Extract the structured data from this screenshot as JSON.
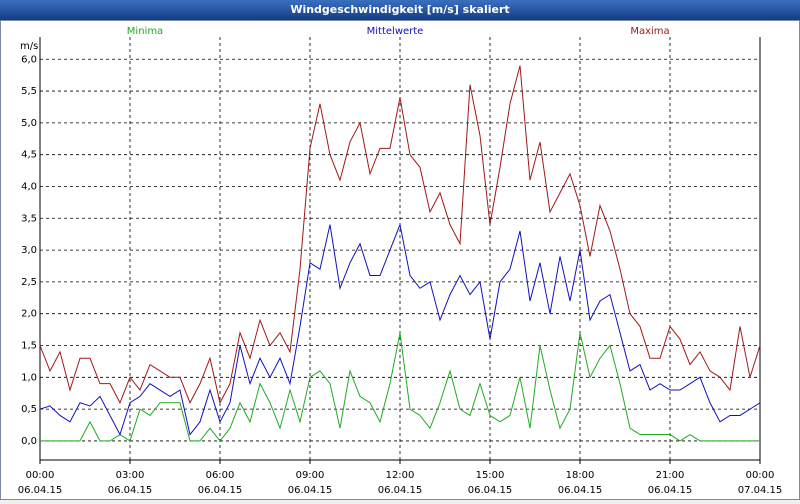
{
  "window_title": "Windgeschwindigkeit [m/s] skaliert",
  "chart_data": {
    "type": "line",
    "y_unit_label": "m/s",
    "xlim": [
      0,
      1440
    ],
    "xticks": [
      {
        "value": 0,
        "label": "00:00",
        "date": "06.04.15"
      },
      {
        "value": 180,
        "label": "03:00",
        "date": "06.04.15"
      },
      {
        "value": 360,
        "label": "06:00",
        "date": "06.04.15"
      },
      {
        "value": 540,
        "label": "09:00",
        "date": "06.04.15"
      },
      {
        "value": 720,
        "label": "12:00",
        "date": "06.04.15"
      },
      {
        "value": 900,
        "label": "15:00",
        "date": "06.04.15"
      },
      {
        "value": 1080,
        "label": "18:00",
        "date": "06.04.15"
      },
      {
        "value": 1260,
        "label": "21:00",
        "date": "06.04.15"
      },
      {
        "value": 1440,
        "label": "00:00",
        "date": "07.04.15"
      }
    ],
    "ylim": [
      -0.3,
      6.35
    ],
    "yticks": [
      {
        "value": 0,
        "label": "0,0"
      },
      {
        "value": 0.5,
        "label": "0,5"
      },
      {
        "value": 1,
        "label": "1,0"
      },
      {
        "value": 1.5,
        "label": "1,5"
      },
      {
        "value": 2,
        "label": "2,0"
      },
      {
        "value": 2.5,
        "label": "2,5"
      },
      {
        "value": 3,
        "label": "3,0"
      },
      {
        "value": 3.5,
        "label": "3,5"
      },
      {
        "value": 4,
        "label": "4,0"
      },
      {
        "value": 4.5,
        "label": "4,5"
      },
      {
        "value": 5,
        "label": "5,0"
      },
      {
        "value": 5.5,
        "label": "5,5"
      },
      {
        "value": 6,
        "label": "6,0"
      }
    ],
    "grid": true,
    "x": [
      0,
      20,
      40,
      60,
      80,
      100,
      120,
      140,
      160,
      180,
      200,
      220,
      240,
      260,
      280,
      300,
      320,
      340,
      360,
      380,
      400,
      420,
      440,
      460,
      480,
      500,
      520,
      540,
      560,
      580,
      600,
      620,
      640,
      660,
      680,
      700,
      720,
      740,
      760,
      780,
      800,
      820,
      840,
      860,
      880,
      900,
      920,
      940,
      960,
      980,
      1000,
      1020,
      1040,
      1060,
      1080,
      1100,
      1120,
      1140,
      1160,
      1180,
      1200,
      1220,
      1240,
      1260,
      1280,
      1300,
      1320,
      1340,
      1360,
      1380,
      1400,
      1420,
      1440
    ],
    "series": [
      {
        "name": "Minima",
        "color": "#22aa22",
        "values": [
          0,
          0,
          0,
          0,
          0,
          0.3,
          0,
          0,
          0.1,
          0,
          0.5,
          0.4,
          0.6,
          0.6,
          0.6,
          0,
          0,
          0.2,
          0,
          0.2,
          0.6,
          0.3,
          0.9,
          0.6,
          0.2,
          0.8,
          0.3,
          1.0,
          1.1,
          0.9,
          0.2,
          1.1,
          0.7,
          0.6,
          0.3,
          0.9,
          1.7,
          0.5,
          0.4,
          0.2,
          0.6,
          1.1,
          0.5,
          0.4,
          0.9,
          0.4,
          0.3,
          0.4,
          1.0,
          0.2,
          1.5,
          0.8,
          0.2,
          0.5,
          1.7,
          1.0,
          1.3,
          1.5,
          0.9,
          0.2,
          0.1,
          0.1,
          0.1,
          0.1,
          0,
          0.1,
          0,
          0,
          0,
          0,
          0,
          0,
          0
        ]
      },
      {
        "name": "Mittelwerte",
        "color": "#1010c0",
        "values": [
          0.5,
          0.55,
          0.4,
          0.3,
          0.6,
          0.55,
          0.7,
          0.4,
          0.1,
          0.6,
          0.7,
          0.9,
          0.8,
          0.7,
          0.8,
          0.1,
          0.3,
          0.8,
          0.3,
          0.6,
          1.5,
          0.9,
          1.3,
          1.0,
          1.3,
          0.9,
          1.8,
          2.8,
          2.7,
          3.4,
          2.4,
          2.8,
          3.1,
          2.6,
          2.6,
          3.0,
          3.4,
          2.6,
          2.4,
          2.5,
          1.9,
          2.3,
          2.6,
          2.3,
          2.5,
          1.6,
          2.5,
          2.7,
          3.3,
          2.2,
          2.8,
          2.0,
          2.9,
          2.2,
          3.0,
          1.9,
          2.2,
          2.3,
          1.7,
          1.1,
          1.2,
          0.8,
          0.9,
          0.8,
          0.8,
          0.9,
          1.0,
          0.6,
          0.3,
          0.4,
          0.4,
          0.5,
          0.6
        ]
      },
      {
        "name": "Maxima",
        "color": "#a01818",
        "values": [
          1.5,
          1.1,
          1.4,
          0.8,
          1.3,
          1.3,
          0.9,
          0.9,
          0.6,
          1.0,
          0.8,
          1.2,
          1.1,
          1.0,
          1.0,
          0.6,
          0.9,
          1.3,
          0.6,
          0.9,
          1.7,
          1.3,
          1.9,
          1.5,
          1.7,
          1.4,
          2.7,
          4.6,
          5.3,
          4.5,
          4.1,
          4.7,
          5.0,
          4.2,
          4.6,
          4.6,
          5.4,
          4.5,
          4.3,
          3.6,
          3.9,
          3.4,
          3.1,
          5.6,
          4.8,
          3.4,
          4.3,
          5.3,
          5.9,
          4.1,
          4.7,
          3.6,
          3.9,
          4.2,
          3.7,
          2.9,
          3.7,
          3.3,
          2.7,
          2.0,
          1.8,
          1.3,
          1.3,
          1.8,
          1.6,
          1.2,
          1.4,
          1.1,
          1.0,
          0.8,
          1.8,
          1.0,
          1.5
        ]
      }
    ]
  }
}
